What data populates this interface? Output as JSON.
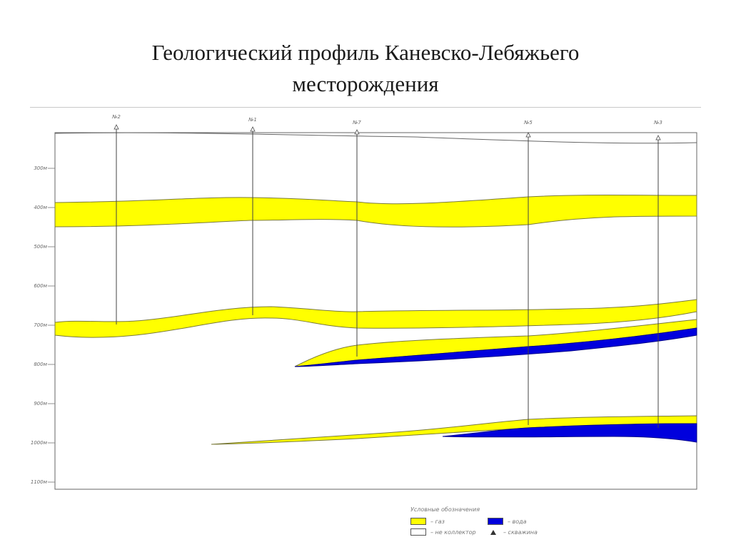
{
  "title": {
    "line1": "Геологический профиль Каневско-Лебяжьего",
    "line2": "месторождения"
  },
  "wells": [
    "№2",
    "№1",
    "№7",
    "№5",
    "№3"
  ],
  "depth_labels": [
    "300м",
    "400м",
    "500м",
    "600м",
    "700м",
    "800м",
    "900м",
    "1000м",
    "1100м"
  ],
  "legend": {
    "title": "Условные обозначения",
    "items": {
      "gas": "– газ",
      "water": "– вода",
      "noncollector": "– не коллектор",
      "well": "– скважина"
    }
  },
  "colors": {
    "gas": "#ffff00",
    "water": "#0000dd",
    "frame": "#555555"
  }
}
